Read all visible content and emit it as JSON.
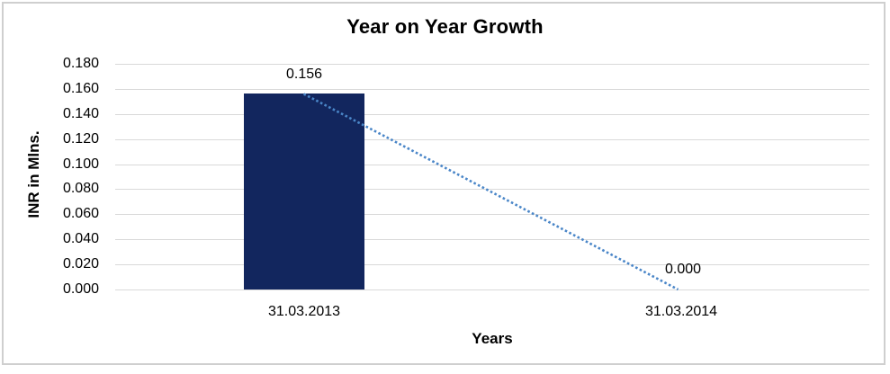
{
  "chart_data": {
    "type": "bar",
    "title": "Year on Year Growth",
    "xlabel": "Years",
    "ylabel": "INR in Mlns.",
    "categories": [
      "31.03.2013",
      "31.03.2014"
    ],
    "series": [
      {
        "name": "Year on Year Growth",
        "values": [
          0.156,
          0.0
        ]
      }
    ],
    "data_labels": [
      "0.156",
      "0.000"
    ],
    "trendline": {
      "style": "dotted",
      "points": [
        [
          0,
          0.156
        ],
        [
          1,
          0.0
        ]
      ]
    },
    "ylim": [
      0,
      0.18
    ],
    "ytick_step": 0.02,
    "yticks": [
      "0.180",
      "0.160",
      "0.140",
      "0.120",
      "0.100",
      "0.080",
      "0.060",
      "0.040",
      "0.020",
      "0.000"
    ],
    "grid": true,
    "legend": "none",
    "colors": {
      "bar": "#12265e",
      "trendline": "#4a86c8",
      "gridline": "#d9d9d9",
      "frame_border": "#cfcfcf",
      "text": "#000000",
      "background": "#ffffff"
    }
  }
}
